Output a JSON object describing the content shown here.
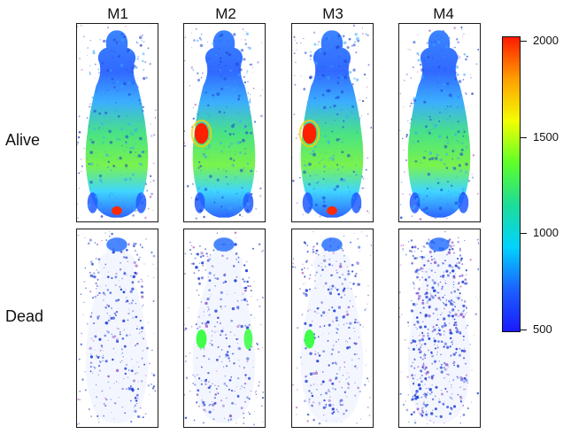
{
  "columns": [
    "M1",
    "M2",
    "M3",
    "M4"
  ],
  "rows": [
    "Alive",
    "Dead"
  ],
  "scale": {
    "labels": [
      "2000",
      "1500",
      "1000",
      "500"
    ],
    "colors": [
      "#ff1a00",
      "#ff9f00",
      "#f2ff00",
      "#5dff2a",
      "#1ddc9a",
      "#00d3ff",
      "#1b61ff",
      "#1a1aff"
    ],
    "max": 2000,
    "min": 500
  },
  "panels": {
    "alive": [
      {
        "id": "M1",
        "hotspots": [
          "tail-base"
        ]
      },
      {
        "id": "M2",
        "hotspots": [
          "left-flank"
        ]
      },
      {
        "id": "M3",
        "hotspots": [
          "left-flank",
          "tail-base"
        ]
      },
      {
        "id": "M4",
        "hotspots": []
      }
    ],
    "dead": [
      {
        "id": "M1",
        "hotspots": []
      },
      {
        "id": "M2",
        "hotspots": [
          "left-flank",
          "right-flank"
        ]
      },
      {
        "id": "M3",
        "hotspots": [
          "left-flank"
        ]
      },
      {
        "id": "M4",
        "hotspots": []
      }
    ]
  }
}
